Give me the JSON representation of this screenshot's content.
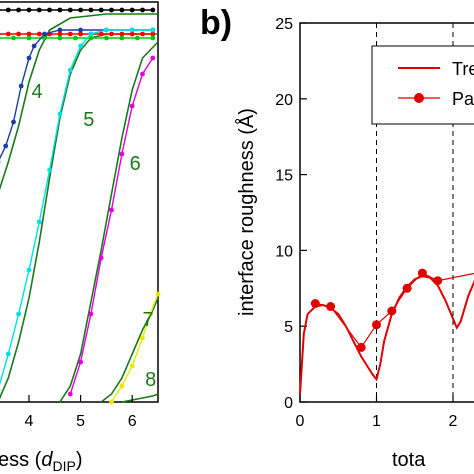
{
  "chart_data": [
    {
      "panel": "a",
      "type": "line",
      "xlabel_visible": "ess (",
      "xlabel_var": "d",
      "xlabel_sub": "DIP",
      "xlabel_close": ")",
      "x_ticks": [
        "4",
        "5",
        "6"
      ],
      "xlim": [
        3.4,
        6.5
      ],
      "ylim": [
        0,
        1.0
      ],
      "curve_labels": [
        {
          "text": "4",
          "x": 4.05,
          "y": 0.76
        },
        {
          "text": "5",
          "x": 5.05,
          "y": 0.69
        },
        {
          "text": "6",
          "x": 5.95,
          "y": 0.58
        },
        {
          "text": "7",
          "x": 6.2,
          "y": 0.19
        },
        {
          "text": "8",
          "x": 6.25,
          "y": 0.04
        }
      ],
      "series": [
        {
          "color": "#000000",
          "points": [
            [
              3.4,
              0.98
            ],
            [
              3.6,
              0.98
            ],
            [
              3.8,
              0.98
            ],
            [
              4.0,
              0.98
            ],
            [
              4.2,
              0.98
            ],
            [
              4.4,
              0.98
            ],
            [
              4.6,
              0.98
            ],
            [
              4.8,
              0.98
            ],
            [
              5.0,
              0.98
            ],
            [
              5.2,
              0.98
            ],
            [
              5.4,
              0.98
            ],
            [
              5.6,
              0.98
            ],
            [
              5.8,
              0.98
            ],
            [
              6.0,
              0.98
            ],
            [
              6.2,
              0.98
            ],
            [
              6.4,
              0.98
            ]
          ]
        },
        {
          "color": "#ff0000",
          "points": [
            [
              3.4,
              0.92
            ],
            [
              3.6,
              0.92
            ],
            [
              3.8,
              0.92
            ],
            [
              4.0,
              0.92
            ],
            [
              4.2,
              0.92
            ],
            [
              4.4,
              0.92
            ],
            [
              4.6,
              0.92
            ],
            [
              4.8,
              0.92
            ],
            [
              5.0,
              0.92
            ],
            [
              5.2,
              0.92
            ],
            [
              5.4,
              0.92
            ],
            [
              5.6,
              0.92
            ],
            [
              5.8,
              0.92
            ],
            [
              6.0,
              0.92
            ],
            [
              6.2,
              0.92
            ],
            [
              6.4,
              0.92
            ]
          ]
        },
        {
          "color": "#00cc00",
          "points": [
            [
              3.4,
              0.91
            ],
            [
              3.7,
              0.91
            ],
            [
              4.0,
              0.91
            ],
            [
              4.3,
              0.91
            ],
            [
              4.6,
              0.91
            ],
            [
              4.9,
              0.91
            ],
            [
              5.2,
              0.91
            ],
            [
              5.5,
              0.91
            ],
            [
              5.8,
              0.91
            ],
            [
              6.1,
              0.91
            ],
            [
              6.4,
              0.91
            ]
          ]
        },
        {
          "color": "#1a3fa0",
          "points": [
            [
              3.4,
              0.6
            ],
            [
              3.55,
              0.64
            ],
            [
              3.7,
              0.7
            ],
            [
              3.85,
              0.79
            ],
            [
              4.0,
              0.86
            ],
            [
              4.1,
              0.89
            ],
            [
              4.3,
              0.92
            ],
            [
              4.6,
              0.93
            ],
            [
              5.0,
              0.93
            ],
            [
              5.5,
              0.93
            ],
            [
              6.0,
              0.93
            ],
            [
              6.4,
              0.93
            ]
          ]
        },
        {
          "color": "#00e0e0",
          "points": [
            [
              3.4,
              0.03
            ],
            [
              3.6,
              0.12
            ],
            [
              3.8,
              0.22
            ],
            [
              4.0,
              0.33
            ],
            [
              4.2,
              0.45
            ],
            [
              4.4,
              0.58
            ],
            [
              4.6,
              0.72
            ],
            [
              4.8,
              0.83
            ],
            [
              5.0,
              0.89
            ],
            [
              5.2,
              0.92
            ],
            [
              5.5,
              0.93
            ],
            [
              6.0,
              0.93
            ],
            [
              6.4,
              0.93
            ]
          ]
        },
        {
          "color": "#e000e0",
          "points": [
            [
              4.8,
              0.02
            ],
            [
              5.0,
              0.1
            ],
            [
              5.2,
              0.22
            ],
            [
              5.4,
              0.36
            ],
            [
              5.6,
              0.48
            ],
            [
              5.8,
              0.62
            ],
            [
              6.0,
              0.74
            ],
            [
              6.2,
              0.82
            ],
            [
              6.4,
              0.86
            ]
          ]
        },
        {
          "color": "#e8e800",
          "points": [
            [
              5.6,
              0.0
            ],
            [
              5.8,
              0.04
            ],
            [
              6.0,
              0.09
            ],
            [
              6.2,
              0.16
            ],
            [
              6.35,
              0.22
            ],
            [
              6.5,
              0.27
            ]
          ]
        }
      ],
      "fits": [
        {
          "color": "#1a7a1a",
          "points": [
            [
              3.4,
              0.52
            ],
            [
              3.6,
              0.6
            ],
            [
              3.8,
              0.69
            ],
            [
              4.0,
              0.8
            ],
            [
              4.2,
              0.88
            ],
            [
              4.4,
              0.93
            ],
            [
              4.8,
              0.96
            ],
            [
              5.5,
              0.97
            ],
            [
              6.5,
              0.97
            ]
          ]
        },
        {
          "color": "#1a7a1a",
          "points": [
            [
              3.4,
              0.0
            ],
            [
              3.6,
              0.06
            ],
            [
              3.8,
              0.15
            ],
            [
              4.0,
              0.26
            ],
            [
              4.2,
              0.4
            ],
            [
              4.4,
              0.56
            ],
            [
              4.6,
              0.71
            ],
            [
              4.8,
              0.82
            ],
            [
              5.0,
              0.88
            ],
            [
              5.2,
              0.91
            ],
            [
              5.5,
              0.92
            ],
            [
              6.0,
              0.92
            ],
            [
              6.5,
              0.92
            ]
          ]
        },
        {
          "color": "#1a7a1a",
          "points": [
            [
              4.6,
              0.0
            ],
            [
              4.8,
              0.04
            ],
            [
              5.0,
              0.12
            ],
            [
              5.2,
              0.25
            ],
            [
              5.4,
              0.38
            ],
            [
              5.6,
              0.52
            ],
            [
              5.8,
              0.66
            ],
            [
              6.0,
              0.78
            ],
            [
              6.2,
              0.86
            ],
            [
              6.5,
              0.9
            ]
          ]
        },
        {
          "color": "#1a7a1a",
          "points": [
            [
              5.4,
              0.0
            ],
            [
              5.6,
              0.02
            ],
            [
              5.8,
              0.06
            ],
            [
              6.0,
              0.12
            ],
            [
              6.2,
              0.18
            ],
            [
              6.4,
              0.23
            ],
            [
              6.5,
              0.26
            ]
          ]
        },
        {
          "color": "#1a7a1a",
          "points": [
            [
              5.8,
              0.0
            ],
            [
              6.0,
              0.005
            ],
            [
              6.2,
              0.01
            ],
            [
              6.4,
              0.015
            ],
            [
              6.5,
              0.02
            ]
          ]
        }
      ]
    },
    {
      "panel": "b",
      "type": "line",
      "panel_label": "b)",
      "ylabel": "interface roughness (Å)",
      "xlabel_visible": "tota",
      "y_ticks": [
        "0",
        "5",
        "10",
        "15",
        "20",
        "25"
      ],
      "x_ticks": [
        "0",
        "1",
        "2"
      ],
      "xlim": [
        0,
        2.6
      ],
      "ylim": [
        0,
        25
      ],
      "vlines": [
        1,
        2
      ],
      "legend": [
        {
          "label": "Tre",
          "style": "line"
        },
        {
          "label": "Pa",
          "style": "line-marker"
        }
      ],
      "legend_position": "top-right",
      "series": [
        {
          "name": "Tre",
          "style": "line",
          "color": "#e00000",
          "points": [
            [
              0,
              0.5
            ],
            [
              0.05,
              4.5
            ],
            [
              0.1,
              5.8
            ],
            [
              0.2,
              6.3
            ],
            [
              0.3,
              6.4
            ],
            [
              0.4,
              6.2
            ],
            [
              0.5,
              5.8
            ],
            [
              0.6,
              5.0
            ],
            [
              0.7,
              4.0
            ],
            [
              0.8,
              3.0
            ],
            [
              0.9,
              2.2
            ],
            [
              0.95,
              1.8
            ],
            [
              1.0,
              1.5
            ],
            [
              1.05,
              2.5
            ],
            [
              1.1,
              4.0
            ],
            [
              1.2,
              5.8
            ],
            [
              1.3,
              6.9
            ],
            [
              1.4,
              7.6
            ],
            [
              1.5,
              8.1
            ],
            [
              1.6,
              8.3
            ],
            [
              1.7,
              8.2
            ],
            [
              1.8,
              7.7
            ],
            [
              1.9,
              6.7
            ],
            [
              2.0,
              5.5
            ],
            [
              2.05,
              4.9
            ],
            [
              2.1,
              5.3
            ],
            [
              2.2,
              7.0
            ],
            [
              2.3,
              8.2
            ],
            [
              2.4,
              8.6
            ],
            [
              2.5,
              8.7
            ],
            [
              2.6,
              8.7
            ]
          ]
        },
        {
          "name": "Pa",
          "style": "line-marker",
          "color": "#e00000",
          "points": [
            [
              0.2,
              6.5
            ],
            [
              0.4,
              6.3
            ],
            [
              0.8,
              3.6
            ],
            [
              1.0,
              5.1
            ],
            [
              1.2,
              6.0
            ],
            [
              1.4,
              7.5
            ],
            [
              1.6,
              8.5
            ],
            [
              1.8,
              8.0
            ],
            [
              2.4,
              8.6
            ]
          ]
        }
      ]
    }
  ]
}
